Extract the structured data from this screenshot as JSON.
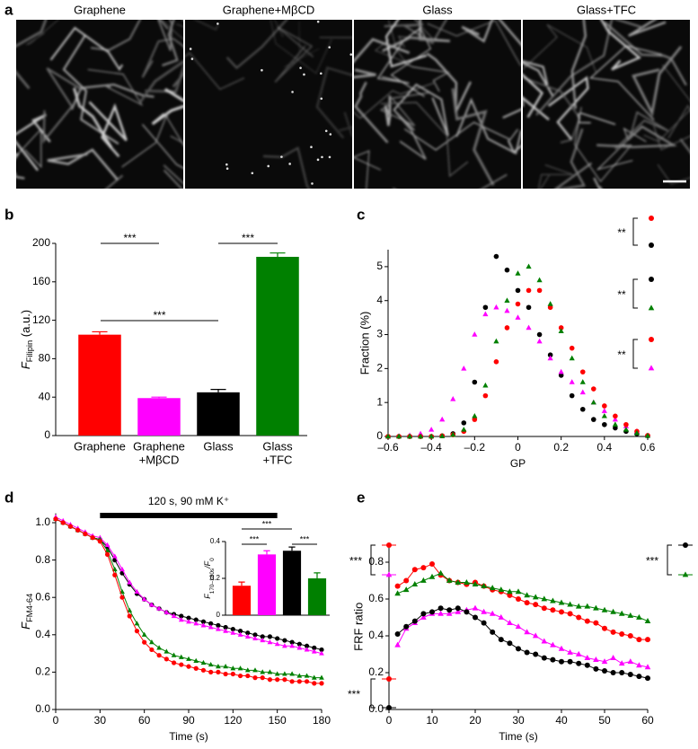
{
  "image_panel": {
    "label": "a",
    "titles": [
      "Graphene",
      "Graphene+MβCD",
      "Glass",
      "Glass+TFC"
    ],
    "colors": [
      "#ff0000",
      "#ff00ff",
      "#000000",
      "#008000"
    ]
  },
  "chart_data": [
    {
      "type": "bar",
      "panel_label": "b",
      "categories": [
        [
          "Graphene"
        ],
        [
          "Graphene",
          "+MβCD"
        ],
        [
          "Glass"
        ],
        [
          "Glass",
          "+TFC"
        ]
      ],
      "values": [
        105,
        39,
        45,
        186
      ],
      "errors": [
        3,
        1,
        3,
        4
      ],
      "colors": [
        "#ff0000",
        "#ff00ff",
        "#000000",
        "#008000"
      ],
      "ylim": [
        0,
        200
      ],
      "yticks": [
        0,
        40,
        80,
        120,
        160,
        200
      ],
      "y_label": {
        "symbol": "F",
        "subscript": "Filipin",
        "unit": " (a.u.)"
      },
      "significance": [
        "***",
        "***",
        "***"
      ]
    },
    {
      "type": "scatter",
      "panel_label": "c",
      "x": [
        -0.6,
        -0.55,
        -0.5,
        -0.45,
        -0.4,
        -0.35,
        -0.3,
        -0.25,
        -0.2,
        -0.15,
        -0.1,
        -0.05,
        0,
        0.05,
        0.1,
        0.15,
        0.2,
        0.25,
        0.3,
        0.35,
        0.4,
        0.45,
        0.5,
        0.55,
        0.6
      ],
      "series": [
        {
          "color": "#000000",
          "marker": "circle",
          "values": [
            0,
            0,
            0,
            0,
            0,
            0.02,
            0.08,
            0.4,
            1.6,
            3.8,
            5.3,
            4.9,
            4.3,
            3.8,
            3.0,
            2.4,
            1.8,
            1.2,
            0.8,
            0.5,
            0.35,
            0.25,
            0.15,
            0.08,
            0.02
          ]
        },
        {
          "color": "#ff00ff",
          "marker": "triangle",
          "values": [
            0,
            0.01,
            0.03,
            0.08,
            0.2,
            0.5,
            1.1,
            2.0,
            3.0,
            3.6,
            3.8,
            3.7,
            3.5,
            3.2,
            2.8,
            2.3,
            1.9,
            1.6,
            1.3,
            1.0,
            0.75,
            0.5,
            0.3,
            0.15,
            0.03
          ]
        },
        {
          "color": "#ff0000",
          "marker": "circle",
          "values": [
            0,
            0,
            0,
            0,
            0,
            0.02,
            0.05,
            0.15,
            0.5,
            1.2,
            2.2,
            3.2,
            3.9,
            4.3,
            4.3,
            3.8,
            3.2,
            2.6,
            1.9,
            1.4,
            0.9,
            0.6,
            0.35,
            0.15,
            0.03
          ]
        },
        {
          "color": "#008000",
          "marker": "triangle",
          "values": [
            0,
            0,
            0,
            0,
            0,
            0.01,
            0.05,
            0.2,
            0.6,
            1.5,
            2.8,
            4.0,
            4.8,
            5.0,
            4.6,
            3.9,
            3.1,
            2.3,
            1.6,
            1.0,
            0.6,
            0.35,
            0.2,
            0.1,
            0.02
          ]
        }
      ],
      "xlim": [
        -0.6,
        0.6
      ],
      "xticks": [
        {
          "value": -0.6,
          "label": "–0.6"
        },
        {
          "value": -0.4,
          "label": "–0.4"
        },
        {
          "value": -0.2,
          "label": "–0.2"
        },
        0,
        0.2,
        0.4,
        0.6
      ],
      "ylim": [
        0,
        5.5
      ],
      "yticks": [
        0,
        1,
        2,
        3,
        4,
        5
      ],
      "x_label": "GP",
      "y_label": "Fraction (%)",
      "significance": [
        "**",
        "**",
        "**"
      ]
    },
    {
      "type": "line",
      "panel_label": "d",
      "x": [
        0,
        5,
        10,
        15,
        20,
        25,
        30,
        35,
        40,
        45,
        50,
        55,
        60,
        65,
        70,
        75,
        80,
        85,
        90,
        95,
        100,
        105,
        110,
        115,
        120,
        125,
        130,
        135,
        140,
        145,
        150,
        155,
        160,
        165,
        170,
        175,
        180
      ],
      "series": [
        {
          "color": "#000000",
          "marker": "circle",
          "values": [
            1.02,
            1.0,
            0.98,
            0.96,
            0.94,
            0.92,
            0.91,
            0.87,
            0.8,
            0.73,
            0.67,
            0.62,
            0.59,
            0.56,
            0.54,
            0.52,
            0.51,
            0.5,
            0.49,
            0.48,
            0.47,
            0.46,
            0.45,
            0.44,
            0.43,
            0.42,
            0.41,
            0.4,
            0.39,
            0.39,
            0.38,
            0.37,
            0.36,
            0.35,
            0.34,
            0.33,
            0.32
          ]
        },
        {
          "color": "#ff00ff",
          "marker": "triangle",
          "values": [
            1.03,
            1.01,
            0.99,
            0.97,
            0.95,
            0.93,
            0.92,
            0.88,
            0.82,
            0.75,
            0.68,
            0.63,
            0.59,
            0.56,
            0.54,
            0.52,
            0.5,
            0.48,
            0.47,
            0.46,
            0.45,
            0.44,
            0.43,
            0.42,
            0.41,
            0.4,
            0.39,
            0.38,
            0.37,
            0.36,
            0.35,
            0.34,
            0.34,
            0.33,
            0.32,
            0.31,
            0.3
          ]
        },
        {
          "color": "#008000",
          "marker": "triangle",
          "values": [
            1.02,
            1.0,
            0.98,
            0.96,
            0.94,
            0.92,
            0.91,
            0.85,
            0.75,
            0.63,
            0.53,
            0.46,
            0.4,
            0.36,
            0.33,
            0.31,
            0.29,
            0.28,
            0.27,
            0.26,
            0.25,
            0.24,
            0.23,
            0.23,
            0.22,
            0.22,
            0.21,
            0.21,
            0.2,
            0.2,
            0.19,
            0.19,
            0.19,
            0.18,
            0.18,
            0.17,
            0.17
          ]
        },
        {
          "color": "#ff0000",
          "marker": "circle",
          "values": [
            1.02,
            1.0,
            0.98,
            0.96,
            0.94,
            0.92,
            0.9,
            0.83,
            0.72,
            0.6,
            0.5,
            0.42,
            0.36,
            0.32,
            0.29,
            0.27,
            0.25,
            0.24,
            0.23,
            0.22,
            0.21,
            0.2,
            0.2,
            0.19,
            0.19,
            0.18,
            0.18,
            0.17,
            0.17,
            0.16,
            0.16,
            0.16,
            0.15,
            0.15,
            0.15,
            0.14,
            0.14
          ]
        }
      ],
      "xlim": [
        0,
        180
      ],
      "xticks": [
        0,
        30,
        60,
        90,
        120,
        150,
        180
      ],
      "ylim": [
        0,
        1.05
      ],
      "yticks": [
        {
          "value": 0,
          "label": "0.0"
        },
        0.2,
        0.4,
        0.6,
        0.8,
        {
          "value": 1,
          "label": "1.0"
        }
      ],
      "x_label": "Time (s)",
      "y_label": {
        "symbol": "F",
        "subscript": "FM4-64"
      },
      "stimulus": {
        "label": "120 s, 90 mM K⁺",
        "start": 30,
        "end": 150
      }
    },
    {
      "type": "bar",
      "categories": [
        null,
        null,
        null,
        null
      ],
      "values": [
        0.16,
        0.33,
        0.35,
        0.2
      ],
      "errors": [
        0.02,
        0.02,
        0.02,
        0.03
      ],
      "colors": [
        "#ff0000",
        "#ff00ff",
        "#000000",
        "#008000"
      ],
      "ylim": [
        0,
        0.4
      ],
      "yticks": [
        0,
        0.2,
        0.4
      ],
      "y_label": {
        "symbol": "F",
        "subscript": "170–180s",
        "unit": "/F",
        "unit_subscript": "0"
      },
      "significance": [
        "***",
        "***",
        "***"
      ]
    },
    {
      "type": "line",
      "panel_label": "e",
      "x": [
        2,
        4,
        6,
        8,
        10,
        12,
        14,
        16,
        18,
        20,
        22,
        24,
        26,
        28,
        30,
        32,
        34,
        36,
        38,
        40,
        42,
        44,
        46,
        48,
        50,
        52,
        54,
        56,
        58,
        60
      ],
      "series": [
        {
          "color": "#ff0000",
          "marker": "circle",
          "values": [
            0.67,
            0.7,
            0.76,
            0.77,
            0.79,
            0.73,
            0.7,
            0.69,
            0.68,
            0.69,
            0.67,
            0.65,
            0.64,
            0.62,
            0.6,
            0.58,
            0.57,
            0.55,
            0.54,
            0.53,
            0.52,
            0.5,
            0.48,
            0.47,
            0.44,
            0.42,
            0.41,
            0.4,
            0.38,
            0.38
          ]
        },
        {
          "color": "#008000",
          "marker": "triangle",
          "values": [
            0.63,
            0.65,
            0.68,
            0.7,
            0.72,
            0.74,
            0.7,
            0.69,
            0.69,
            0.68,
            0.67,
            0.66,
            0.65,
            0.64,
            0.64,
            0.62,
            0.61,
            0.6,
            0.59,
            0.58,
            0.57,
            0.56,
            0.56,
            0.55,
            0.54,
            0.53,
            0.52,
            0.51,
            0.5,
            0.48
          ]
        },
        {
          "color": "#ff00ff",
          "marker": "triangle",
          "values": [
            0.35,
            0.44,
            0.47,
            0.5,
            0.52,
            0.52,
            0.52,
            0.53,
            0.54,
            0.55,
            0.53,
            0.52,
            0.5,
            0.47,
            0.45,
            0.42,
            0.4,
            0.37,
            0.35,
            0.33,
            0.31,
            0.3,
            0.28,
            0.27,
            0.26,
            0.28,
            0.25,
            0.26,
            0.24,
            0.23
          ]
        },
        {
          "color": "#000000",
          "marker": "circle",
          "values": [
            0.41,
            0.45,
            0.48,
            0.52,
            0.53,
            0.55,
            0.54,
            0.55,
            0.53,
            0.5,
            0.47,
            0.42,
            0.38,
            0.36,
            0.33,
            0.31,
            0.3,
            0.28,
            0.27,
            0.26,
            0.26,
            0.25,
            0.24,
            0.22,
            0.21,
            0.2,
            0.2,
            0.19,
            0.18,
            0.17
          ]
        }
      ],
      "xlim": [
        0,
        60
      ],
      "xticks": [
        0,
        10,
        20,
        30,
        40,
        50,
        60
      ],
      "ylim": [
        0,
        0.9
      ],
      "yticks": [
        {
          "value": 0,
          "label": "0.0"
        },
        0.2,
        0.4,
        0.6,
        0.8
      ],
      "x_label": "Time (s)",
      "y_label": "FRF ratio",
      "significance": [
        "***",
        "***",
        "***"
      ]
    }
  ]
}
